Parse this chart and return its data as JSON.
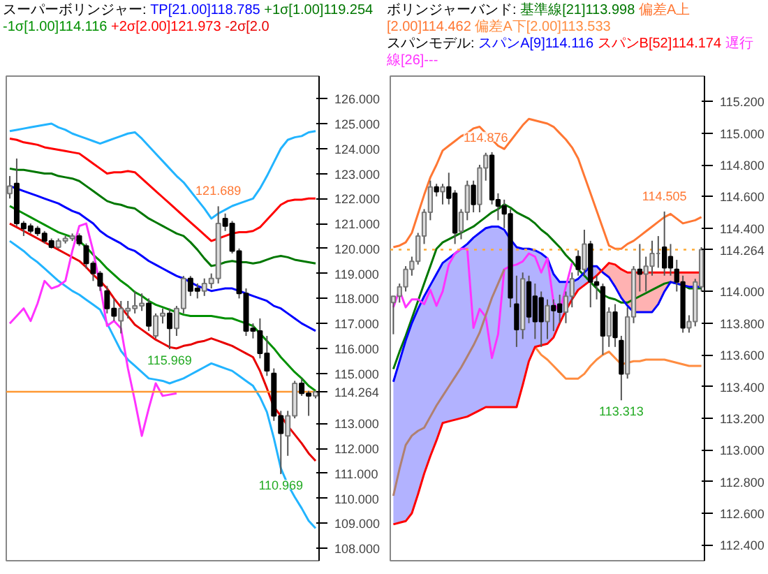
{
  "chart_data": [
    {
      "type": "candlestick",
      "title": "スーパーボリンジャー:",
      "grid": false,
      "tick_labels": "y",
      "ylim": [
        107.5,
        126.9
      ],
      "yticks": [
        {
          "value": 108,
          "label": "108.000"
        },
        {
          "value": 109,
          "label": "109.000"
        },
        {
          "value": 110,
          "label": "110.000"
        },
        {
          "value": 111,
          "label": "111.000"
        },
        {
          "value": 112,
          "label": "112.000"
        },
        {
          "value": 113,
          "label": "113.000"
        },
        {
          "value": 115,
          "label": "115.000"
        },
        {
          "value": 116,
          "label": "116.000"
        },
        {
          "value": 117,
          "label": "117.000"
        },
        {
          "value": 118,
          "label": "118.000"
        },
        {
          "value": 119,
          "label": "119.000"
        },
        {
          "value": 120,
          "label": "120.000"
        },
        {
          "value": 121,
          "label": "121.000"
        },
        {
          "value": 122,
          "label": "122.000"
        },
        {
          "value": 123,
          "label": "123.000"
        },
        {
          "value": 124,
          "label": "124.000"
        },
        {
          "value": 125,
          "label": "125.000"
        },
        {
          "value": 126,
          "label": "126.000"
        }
      ],
      "categories": [
        null,
        null,
        null,
        null,
        null,
        null,
        null,
        null,
        null,
        null,
        null,
        null,
        null,
        null,
        null,
        null,
        null,
        null,
        null,
        null,
        null,
        null,
        null,
        null,
        null,
        null,
        null,
        null,
        null,
        null,
        null,
        null,
        null,
        null,
        null,
        null,
        null,
        null,
        null,
        null,
        null,
        null,
        null,
        null,
        null
      ],
      "ohlc": [
        [
          122.2,
          122.9,
          122.0,
          122.5
        ],
        [
          122.6,
          123.6,
          120.9,
          121.0
        ],
        [
          121.0,
          121.1,
          120.5,
          120.8
        ],
        [
          120.9,
          121.0,
          120.6,
          120.7
        ],
        [
          120.8,
          120.9,
          120.5,
          120.6
        ],
        [
          120.6,
          120.7,
          120.2,
          120.3
        ],
        [
          120.3,
          120.4,
          120.0,
          120.05
        ],
        [
          120.05,
          120.4,
          120.0,
          120.3
        ],
        [
          120.3,
          120.5,
          120.2,
          120.4
        ],
        [
          120.4,
          120.6,
          120.3,
          120.5
        ],
        [
          120.5,
          120.6,
          120.1,
          120.2
        ],
        [
          120.1,
          120.2,
          119.2,
          119.4
        ],
        [
          119.4,
          119.5,
          118.7,
          119.0
        ],
        [
          119.0,
          119.1,
          118.3,
          118.5
        ],
        [
          118.3,
          118.5,
          117.4,
          117.6
        ],
        [
          117.6,
          118.0,
          117.1,
          117.3
        ],
        [
          117.1,
          117.9,
          116.6,
          117.6
        ],
        [
          117.5,
          117.9,
          117.2,
          117.6
        ],
        [
          117.6,
          118.3,
          117.4,
          117.7
        ],
        [
          117.7,
          118.2,
          117.5,
          117.8
        ],
        [
          117.8,
          118.0,
          116.7,
          116.9
        ],
        [
          116.5,
          117.4,
          116.4,
          117.3
        ],
        [
          117.3,
          117.6,
          117.0,
          117.4
        ],
        [
          117.4,
          117.6,
          115.969,
          116.8
        ],
        [
          116.8,
          117.7,
          116.5,
          117.6
        ],
        [
          117.6,
          118.9,
          117.4,
          118.8
        ],
        [
          118.8,
          118.9,
          118.1,
          118.3
        ],
        [
          118.4,
          118.6,
          118.0,
          118.3
        ],
        [
          118.3,
          118.8,
          118.1,
          118.6
        ],
        [
          118.6,
          119.0,
          118.4,
          118.8
        ],
        [
          118.8,
          121.689,
          118.6,
          121.0
        ],
        [
          121.2,
          121.4,
          120.7,
          120.9
        ],
        [
          121.0,
          121.1,
          119.8,
          119.9
        ],
        [
          119.9,
          120.0,
          118.0,
          118.2
        ],
        [
          118.2,
          118.4,
          116.5,
          116.7
        ],
        [
          116.8,
          117.0,
          116.4,
          116.7
        ],
        [
          116.7,
          117.2,
          115.6,
          115.8
        ],
        [
          115.8,
          116.5,
          114.9,
          115.1
        ],
        [
          115.0,
          115.2,
          113.1,
          113.3
        ],
        [
          113.3,
          113.5,
          110.969,
          112.6
        ],
        [
          112.5,
          113.5,
          111.7,
          113.3
        ],
        [
          113.3,
          114.7,
          113.2,
          114.6
        ],
        [
          114.6,
          114.8,
          114.1,
          114.2
        ],
        [
          114.2,
          114.3,
          113.3,
          114.1
        ],
        [
          114.1,
          114.3,
          114.0,
          114.264
        ]
      ],
      "series": [
        {
          "type": "line",
          "name": "TP[21.00]118.785",
          "color": "#0000ff",
          "values": [
            122.5,
            122.4,
            122.3,
            122.2,
            122.1,
            122.0,
            121.9,
            121.8,
            121.65,
            121.5,
            121.4,
            121.2,
            121.0,
            120.7,
            120.5,
            120.35,
            120.2,
            120.0,
            119.9,
            119.7,
            119.5,
            119.35,
            119.2,
            119.05,
            118.9,
            118.8,
            118.65,
            118.5,
            118.4,
            118.3,
            118.35,
            118.4,
            118.4,
            118.3,
            118.2,
            118.1,
            118.0,
            117.9,
            117.7,
            117.6,
            117.4,
            117.2,
            117.0,
            116.85,
            116.7
          ]
        },
        {
          "type": "line",
          "name": "+1σ[1.00]119.254",
          "color": "#007700",
          "values": [
            123.2,
            123.15,
            123.15,
            123.1,
            123.05,
            123.0,
            123.0,
            122.9,
            122.85,
            122.8,
            122.7,
            122.5,
            122.3,
            122.1,
            121.9,
            121.8,
            121.75,
            121.65,
            121.6,
            121.4,
            121.2,
            121.05,
            120.9,
            120.75,
            120.6,
            120.5,
            120.25,
            119.95,
            119.6,
            119.3,
            119.35,
            119.45,
            119.5,
            119.45,
            119.45,
            119.4,
            119.45,
            119.55,
            119.65,
            119.7,
            119.65,
            119.55,
            119.5,
            119.45,
            119.4
          ]
        },
        {
          "type": "line",
          "name": "-1σ[1.00]114.116",
          "color": "#009000",
          "values": [
            121.7,
            121.55,
            121.4,
            121.25,
            121.1,
            120.95,
            120.8,
            120.65,
            120.55,
            120.45,
            120.3,
            120.05,
            119.75,
            119.5,
            119.2,
            118.95,
            118.7,
            118.5,
            118.25,
            118.1,
            117.9,
            117.75,
            117.65,
            117.55,
            117.45,
            117.35,
            117.3,
            117.3,
            117.3,
            117.3,
            117.25,
            117.2,
            117.2,
            117.1,
            117.0,
            116.9,
            116.6,
            116.3,
            116.0,
            115.65,
            115.35,
            115.05,
            114.8,
            114.5,
            114.3
          ]
        },
        {
          "type": "line",
          "name": "+2σ[2.00]121.973",
          "color": "#ff0000",
          "values": [
            124.4,
            124.35,
            124.25,
            124.2,
            124.15,
            124.05,
            124.0,
            123.95,
            123.9,
            123.85,
            123.8,
            123.6,
            123.4,
            123.2,
            123.0,
            123.05,
            123.05,
            123.1,
            123.05,
            122.8,
            122.55,
            122.3,
            122.05,
            121.8,
            121.55,
            121.3,
            121.05,
            120.8,
            120.55,
            120.3,
            120.4,
            120.5,
            120.6,
            120.65,
            120.65,
            120.7,
            120.85,
            121.15,
            121.45,
            121.75,
            121.9,
            121.95,
            121.95,
            122.0,
            122.0
          ]
        },
        {
          "type": "line",
          "name": "-2σ[2.0",
          "color": "#e80000",
          "values": [
            121.0,
            120.85,
            120.7,
            120.55,
            120.4,
            120.25,
            120.1,
            119.95,
            119.8,
            119.65,
            119.5,
            119.25,
            118.95,
            118.7,
            118.4,
            118.0,
            117.65,
            117.3,
            116.95,
            116.75,
            116.55,
            116.35,
            116.2,
            116.05,
            116.0,
            116.1,
            116.15,
            116.25,
            116.3,
            116.4,
            116.3,
            116.2,
            116.1,
            115.95,
            115.8,
            115.65,
            115.1,
            114.4,
            113.65,
            113.3,
            112.9,
            112.55,
            112.2,
            111.8,
            111.5
          ]
        },
        {
          "type": "line",
          "color": "#22b4ff",
          "values": [
            124.7,
            124.75,
            124.8,
            124.85,
            124.9,
            124.95,
            125.0,
            124.85,
            124.75,
            124.6,
            124.5,
            124.4,
            124.3,
            124.2,
            124.3,
            124.4,
            124.5,
            124.6,
            124.65,
            124.4,
            124.1,
            123.8,
            123.5,
            123.2,
            122.9,
            122.65,
            122.3,
            121.95,
            121.6,
            121.2,
            121.4,
            121.55,
            121.7,
            121.8,
            121.9,
            122.0,
            122.4,
            122.9,
            123.45,
            124.0,
            124.35,
            124.45,
            124.5,
            124.65,
            124.7
          ]
        },
        {
          "type": "line",
          "color": "#22b4ff",
          "values": [
            120.3,
            120.1,
            119.9,
            119.65,
            119.45,
            119.2,
            118.95,
            118.7,
            118.5,
            118.3,
            118.15,
            117.95,
            117.75,
            117.55,
            117.0,
            116.45,
            115.9,
            115.55,
            115.3,
            115.05,
            114.8,
            114.75,
            114.7,
            114.6,
            114.7,
            114.8,
            114.95,
            115.1,
            115.25,
            115.4,
            115.3,
            115.2,
            115.1,
            114.9,
            114.7,
            114.5,
            114.05,
            113.45,
            112.4,
            111.2,
            110.55,
            110.05,
            109.6,
            109.1,
            108.8
          ]
        },
        {
          "type": "line",
          "color": "#ff33ff",
          "values": [
            117.0,
            117.3,
            117.6,
            117.1,
            117.8,
            118.7,
            118.4,
            118.5,
            118.7,
            119.9,
            120.9,
            121.0,
            119.9,
            118.5,
            116.9,
            117.1,
            116.8,
            115.2,
            113.9,
            112.5,
            113.6,
            114.6,
            114.1,
            114.15,
            114.2,
            null,
            null,
            null,
            null,
            null,
            null,
            null,
            null,
            null,
            null,
            null,
            null,
            null,
            null,
            null,
            null,
            null,
            null,
            null,
            null
          ]
        }
      ],
      "ref_lines": [
        {
          "axis": "y",
          "value": 114.264,
          "label": "114.264",
          "color": "#ff9933",
          "line_style": "solid"
        }
      ],
      "annotations": [
        {
          "text": "121.689",
          "y": 121.689
        },
        {
          "text": "115.969",
          "y": 115.969
        },
        {
          "text": "110.969",
          "y": 110.969
        }
      ]
    },
    {
      "type": "candlestick",
      "title": "ボリンジャーバンド:",
      "subtitle": "スパンモデル:",
      "grid": false,
      "tick_labels": "y",
      "ylim": [
        112.3,
        115.36
      ],
      "yticks": [
        {
          "value": 112.4,
          "label": "112.400"
        },
        {
          "value": 112.6,
          "label": "112.600"
        },
        {
          "value": 112.8,
          "label": "112.800"
        },
        {
          "value": 113.0,
          "label": "113.000"
        },
        {
          "value": 113.2,
          "label": "113.200"
        },
        {
          "value": 113.4,
          "label": "113.400"
        },
        {
          "value": 113.6,
          "label": "113.600"
        },
        {
          "value": 113.8,
          "label": "113.800"
        },
        {
          "value": 114.0,
          "label": "114.000"
        },
        {
          "value": 114.4,
          "label": "114.400"
        },
        {
          "value": 114.6,
          "label": "114.600"
        },
        {
          "value": 114.8,
          "label": "114.800"
        },
        {
          "value": 115.0,
          "label": "115.000"
        },
        {
          "value": 115.2,
          "label": "115.200"
        }
      ],
      "categories": [
        null,
        null,
        null,
        null,
        null,
        null,
        null,
        null,
        null,
        null,
        null,
        null,
        null,
        null,
        null,
        null,
        null,
        null,
        null,
        null,
        null,
        null,
        null,
        null,
        null,
        null,
        null,
        null,
        null,
        null,
        null,
        null,
        null,
        null,
        null,
        null,
        null,
        null,
        null,
        null,
        null,
        null,
        null,
        null,
        null,
        null,
        null,
        null,
        null,
        null,
        null
      ],
      "ohlc": [
        [
          113.93,
          113.97,
          113.73,
          113.97
        ],
        [
          113.97,
          114.05,
          113.93,
          114.03
        ],
        [
          114.03,
          114.16,
          114.0,
          114.14
        ],
        [
          114.14,
          114.22,
          114.1,
          114.19
        ],
        [
          114.19,
          114.37,
          114.17,
          114.35
        ],
        [
          114.35,
          114.52,
          114.3,
          114.5
        ],
        [
          114.5,
          114.7,
          114.45,
          114.66
        ],
        [
          114.66,
          114.68,
          114.6,
          114.63
        ],
        [
          114.63,
          114.68,
          114.55,
          114.66
        ],
        [
          114.66,
          114.75,
          114.55,
          114.59
        ],
        [
          114.62,
          114.64,
          114.3,
          114.37
        ],
        [
          114.38,
          114.52,
          114.33,
          114.5
        ],
        [
          114.5,
          114.7,
          114.45,
          114.67
        ],
        [
          114.67,
          114.7,
          114.5,
          114.55
        ],
        [
          114.55,
          114.8,
          114.5,
          114.78
        ],
        [
          114.78,
          114.876,
          114.7,
          114.86
        ],
        [
          114.86,
          114.88,
          114.55,
          114.58
        ],
        [
          114.58,
          114.62,
          114.45,
          114.54
        ],
        [
          114.54,
          114.58,
          114.4,
          114.49
        ],
        [
          114.49,
          114.52,
          113.9,
          113.96
        ],
        [
          113.92,
          114.1,
          113.65,
          113.76
        ],
        [
          113.76,
          114.12,
          113.7,
          114.08
        ],
        [
          114.06,
          114.1,
          113.8,
          113.84
        ],
        [
          113.97,
          114.05,
          113.7,
          113.81
        ],
        [
          113.96,
          114.0,
          113.65,
          113.81
        ],
        [
          113.81,
          113.95,
          113.7,
          113.91
        ],
        [
          113.91,
          113.95,
          113.75,
          113.88
        ],
        [
          113.92,
          113.98,
          113.8,
          113.87
        ],
        [
          113.87,
          114.0,
          113.8,
          113.97
        ],
        [
          113.97,
          114.12,
          113.9,
          114.08
        ],
        [
          114.22,
          114.26,
          114.1,
          114.14
        ],
        [
          114.14,
          114.39,
          114.1,
          114.3
        ],
        [
          114.3,
          114.32,
          113.9,
          114.06
        ],
        [
          114.06,
          114.1,
          113.95,
          114.04
        ],
        [
          114.03,
          114.05,
          113.6,
          113.72
        ],
        [
          113.72,
          113.9,
          113.65,
          113.87
        ],
        [
          113.87,
          113.92,
          113.65,
          113.71
        ],
        [
          113.69,
          113.72,
          113.313,
          113.48
        ],
        [
          113.48,
          113.9,
          113.45,
          113.84
        ],
        [
          113.84,
          114.16,
          113.8,
          114.14
        ],
        [
          114.14,
          114.3,
          114.0,
          114.11
        ],
        [
          114.11,
          114.22,
          114.0,
          114.16
        ],
        [
          114.16,
          114.32,
          114.1,
          114.24
        ],
        [
          114.24,
          114.35,
          114.15,
          114.24
        ],
        [
          114.28,
          114.505,
          114.1,
          114.15
        ],
        [
          114.22,
          114.3,
          114.1,
          114.15
        ],
        [
          114.14,
          114.2,
          114.0,
          114.06
        ],
        [
          114.06,
          114.1,
          113.74,
          113.77
        ],
        [
          113.77,
          113.85,
          113.74,
          113.81
        ],
        [
          113.81,
          114.08,
          113.78,
          114.06
        ],
        [
          114.03,
          114.28,
          114.0,
          114.264
        ]
      ],
      "series": [
        {
          "type": "line",
          "name": "基準線[21]113.998",
          "color": "#007700",
          "values": [
            113.51,
            113.62,
            113.72,
            113.83,
            113.94,
            114.05,
            114.16,
            114.27,
            114.31,
            114.33,
            114.35,
            114.37,
            114.39,
            114.41,
            114.44,
            114.47,
            114.5,
            114.52,
            114.55,
            114.53,
            114.5,
            114.48,
            114.46,
            114.43,
            114.39,
            114.36,
            114.32,
            114.28,
            114.23,
            114.19,
            114.14,
            114.1,
            114.06,
            114.02,
            113.98,
            113.96,
            113.95,
            113.93,
            113.93,
            113.95,
            113.97,
            113.99,
            114.01,
            114.03,
            114.05,
            114.06,
            114.05,
            114.04,
            114.02,
            114.02,
            114.02
          ]
        },
        {
          "type": "line",
          "name": "偏差A上[2.00]114.462",
          "color": "#ff7733",
          "values": [
            114.28,
            114.29,
            114.31,
            114.37,
            114.49,
            114.61,
            114.72,
            114.8,
            114.89,
            114.92,
            114.95,
            114.98,
            115.0,
            115.03,
            115.04,
            115.0,
            114.96,
            114.92,
            114.9,
            114.95,
            115.0,
            115.05,
            115.09,
            115.08,
            115.07,
            115.06,
            115.04,
            115.0,
            114.96,
            114.91,
            114.84,
            114.73,
            114.62,
            114.51,
            114.4,
            114.29,
            114.27,
            114.27,
            114.3,
            114.32,
            114.35,
            114.38,
            114.41,
            114.44,
            114.47,
            114.49,
            114.46,
            114.43,
            114.44,
            114.45,
            114.47
          ]
        },
        {
          "type": "line",
          "name": "偏差A下[2.00]113.533",
          "color": "#ff8c40",
          "values": [
            null,
            null,
            null,
            null,
            null,
            null,
            null,
            null,
            null,
            null,
            null,
            null,
            null,
            null,
            null,
            null,
            null,
            null,
            null,
            null,
            null,
            null,
            null,
            113.65,
            113.6,
            113.57,
            113.53,
            113.49,
            113.45,
            113.45,
            113.45,
            113.48,
            113.53,
            113.57,
            113.6,
            113.62,
            113.58,
            113.54,
            113.55,
            113.56,
            113.56,
            113.57,
            113.57,
            113.57,
            113.57,
            113.56,
            113.55,
            113.54,
            113.53,
            113.53,
            113.53
          ]
        },
        {
          "type": "line",
          "name": "スパンA[9]114.116",
          "color": "#0000ff",
          "values": [
            113.43,
            113.56,
            113.69,
            113.8,
            113.89,
            113.97,
            114.04,
            114.11,
            114.18,
            114.21,
            114.24,
            114.27,
            114.3,
            114.34,
            114.37,
            114.4,
            114.41,
            114.41,
            114.39,
            114.33,
            114.28,
            114.27,
            114.27,
            114.26,
            114.24,
            114.21,
            114.11,
            114.06,
            114.06,
            114.06,
            114.08,
            114.12,
            114.16,
            114.16,
            114.12,
            114.09,
            114.03,
            113.96,
            113.91,
            113.87,
            113.87,
            113.87,
            113.87,
            113.92,
            114.0,
            114.06,
            114.05,
            114.04,
            114.03,
            114.03,
            114.03
          ],
          "upper": [
            113.43,
            113.56,
            113.69,
            113.8,
            113.89,
            113.97,
            114.04,
            114.11,
            114.18,
            114.21,
            114.24,
            114.27,
            114.3,
            114.34,
            114.37,
            114.4,
            114.41,
            114.41,
            114.39,
            114.33,
            114.28,
            114.27,
            114.27,
            114.26,
            114.24,
            114.21,
            114.11,
            114.06,
            114.06,
            114.06,
            114.08,
            114.12,
            114.16,
            114.16,
            null,
            null,
            null,
            null,
            null,
            null,
            null,
            null,
            null,
            null,
            null,
            null,
            null,
            null,
            null,
            null,
            null
          ],
          "lower": [
            112.53,
            112.54,
            112.55,
            112.6,
            112.72,
            112.85,
            112.96,
            113.06,
            113.17,
            113.18,
            113.19,
            113.2,
            113.21,
            113.23,
            113.25,
            113.27,
            113.27,
            113.27,
            113.27,
            113.27,
            113.27,
            113.41,
            113.56,
            113.65,
            113.66,
            113.67,
            113.71,
            113.8,
            113.88,
            113.95,
            114.01,
            114.04,
            114.07,
            114.1,
            null,
            null,
            null,
            null,
            null,
            null,
            null,
            null,
            null,
            null,
            null,
            null,
            null,
            null,
            null,
            null,
            null
          ]
        },
        {
          "type": "line",
          "name": "スパンB[52]114.174",
          "color": "#ff0000",
          "values": [
            112.53,
            112.54,
            112.55,
            112.6,
            112.72,
            112.85,
            112.96,
            113.06,
            113.17,
            113.18,
            113.19,
            113.2,
            113.21,
            113.23,
            113.25,
            113.27,
            113.27,
            113.27,
            113.27,
            113.27,
            113.27,
            113.41,
            113.56,
            113.65,
            113.66,
            113.67,
            113.71,
            113.8,
            113.88,
            113.95,
            114.01,
            114.04,
            114.07,
            114.1,
            114.14,
            114.18,
            114.17,
            114.14,
            114.12,
            114.12,
            114.12,
            114.12,
            114.12,
            114.12,
            114.12,
            114.12,
            114.12,
            114.12,
            114.12,
            114.12,
            114.12
          ],
          "upper": [
            null,
            null,
            null,
            null,
            null,
            null,
            null,
            null,
            null,
            null,
            null,
            null,
            null,
            null,
            null,
            null,
            null,
            null,
            null,
            null,
            null,
            null,
            null,
            null,
            null,
            null,
            null,
            null,
            null,
            null,
            null,
            null,
            null,
            114.1,
            114.14,
            114.18,
            114.17,
            114.14,
            114.12,
            114.12,
            114.12,
            114.12,
            114.12,
            114.12,
            114.12,
            114.12,
            114.12,
            114.12,
            114.12,
            114.12,
            114.12
          ],
          "lower": [
            null,
            null,
            null,
            null,
            null,
            null,
            null,
            null,
            null,
            null,
            null,
            null,
            null,
            null,
            null,
            null,
            null,
            null,
            null,
            null,
            null,
            null,
            null,
            null,
            null,
            null,
            null,
            null,
            null,
            null,
            null,
            null,
            null,
            114.16,
            114.12,
            114.09,
            114.03,
            113.96,
            113.91,
            113.87,
            113.87,
            113.87,
            113.87,
            113.92,
            114.0,
            114.06,
            114.05,
            114.04,
            114.03,
            114.03,
            114.03
          ]
        },
        {
          "type": "line",
          "name": "遅行線[26]---",
          "color": "#ff33ff",
          "values": [
            113.9,
            114.01,
            113.9,
            113.95,
            113.95,
            113.92,
            114.01,
            113.91,
            114.0,
            114.17,
            114.24,
            114.27,
            114.27,
            113.77,
            113.89,
            113.84,
            113.58,
            113.73,
            114.14,
            114.16,
            114.17,
            114.19,
            114.24,
            114.22,
            114.12,
            114.21,
            113.93,
            113.87,
            114.03,
            114.18,
            null,
            null,
            null,
            null,
            null,
            null,
            null,
            null,
            null,
            null,
            null,
            null,
            null,
            null,
            null,
            null,
            null,
            null,
            null,
            null,
            null
          ]
        },
        {
          "type": "line",
          "color": "#b08070",
          "values": [
            112.71,
            112.88,
            113.03,
            113.09,
            113.12,
            113.14,
            113.21,
            113.28,
            113.34,
            113.4,
            113.46,
            113.52,
            113.59,
            113.66,
            113.74,
            113.85,
            113.96,
            114.05,
            114.14,
            null,
            null,
            null,
            null,
            null,
            null,
            null,
            null,
            null,
            null,
            null,
            null,
            null,
            null,
            null,
            null,
            null,
            null,
            null,
            null,
            null,
            null,
            null,
            null,
            null,
            null,
            null,
            null,
            null,
            null,
            null,
            null
          ]
        }
      ],
      "ref_lines": [
        {
          "axis": "y",
          "value": 114.264,
          "label": "114.264",
          "color": "#ffaa33",
          "line_style": "dotted"
        }
      ],
      "annotations": [
        {
          "text": "114.876",
          "y": 114.876
        },
        {
          "text": "114.505",
          "y": 114.505
        },
        {
          "text": "113.313",
          "y": 113.313
        }
      ]
    }
  ]
}
